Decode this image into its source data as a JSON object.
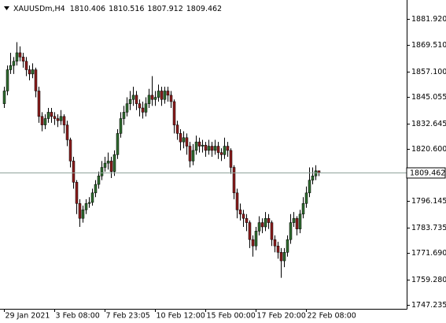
{
  "chart_data": {
    "type": "candlestick",
    "symbol": "XAUUSDm,H4",
    "bull_color": "#2f6b2f",
    "bear_color": "#8b1c1c",
    "wick_color": "#000000",
    "price_line_color": "#8fa39a",
    "categories": [
      "29 Jan 2021",
      null,
      null,
      null,
      null,
      null,
      null,
      null,
      null,
      null,
      null,
      null,
      null,
      null,
      null,
      null,
      "3 Feb 08:00",
      null,
      null,
      null,
      null,
      null,
      null,
      null,
      null,
      null,
      null,
      null,
      null,
      null,
      null,
      null,
      "7 Feb 23:05",
      null,
      null,
      null,
      null,
      null,
      null,
      null,
      null,
      null,
      null,
      null,
      null,
      null,
      null,
      null,
      "10 Feb 12:00",
      null,
      null,
      null,
      null,
      null,
      null,
      null,
      null,
      null,
      null,
      null,
      null,
      null,
      null,
      null,
      "15 Feb 00:00",
      null,
      null,
      null,
      null,
      null,
      null,
      null,
      null,
      null,
      null,
      null,
      null,
      null,
      null,
      null,
      "17 Feb 20:00",
      null,
      null,
      null,
      null,
      null,
      null,
      null,
      null,
      null,
      null,
      null,
      null,
      null,
      null,
      null,
      "22 Feb 08:00",
      null,
      null,
      null,
      null
    ],
    "open": [
      1842,
      1848,
      1858,
      1860,
      1862,
      1866,
      1864,
      1862,
      1858,
      1856,
      1858,
      1848,
      1836,
      1832,
      1835,
      1838,
      1836,
      1835,
      1834,
      1836,
      1832,
      1825,
      1815,
      1805,
      1795,
      1788,
      1792,
      1795,
      1795.5,
      1800,
      1804,
      1808,
      1812,
      1814,
      1815,
      1810,
      1818,
      1828,
      1835,
      1838,
      1842,
      1844,
      1846,
      1842,
      1840,
      1838,
      1842,
      1846,
      1844,
      1845,
      1848,
      1844,
      1848,
      1846,
      1843,
      1832,
      1828,
      1824,
      1826,
      1822,
      1815,
      1820,
      1824,
      1822,
      1822.5,
      1820,
      1822,
      1820,
      1822,
      1819,
      1818,
      1822,
      1820,
      1812,
      1800,
      1792,
      1790,
      1788,
      1786,
      1778,
      1775,
      1782,
      1786,
      1784,
      1788,
      1786,
      1778,
      1775,
      1772,
      1768,
      1772,
      1778,
      1786,
      1788,
      1783,
      1790,
      1795,
      1800,
      1806,
      1808,
      1810.406
    ],
    "high": [
      1850,
      1860,
      1866,
      1864,
      1871,
      1869,
      1866,
      1864,
      1860,
      1861,
      1859,
      1850,
      1838,
      1837,
      1840,
      1840,
      1838,
      1837,
      1839,
      1837,
      1834,
      1826,
      1817,
      1806,
      1797,
      1794,
      1797,
      1798,
      1802,
      1806,
      1810,
      1815,
      1817,
      1819,
      1817,
      1820,
      1830,
      1838,
      1841,
      1845,
      1848,
      1850,
      1848,
      1844,
      1843,
      1845,
      1849,
      1855,
      1848,
      1851,
      1850,
      1850,
      1850,
      1848,
      1844,
      1834,
      1830,
      1829,
      1828,
      1824,
      1823,
      1827,
      1826,
      1825,
      1824,
      1825,
      1824,
      1825,
      1824,
      1821,
      1826,
      1824,
      1821,
      1813,
      1802,
      1795,
      1792,
      1790,
      1787,
      1780,
      1784,
      1789,
      1788,
      1791,
      1790,
      1787,
      1780,
      1777,
      1774,
      1774,
      1780,
      1790,
      1791,
      1789,
      1792,
      1798,
      1803,
      1812,
      1812,
      1813,
      1810.516
    ],
    "low": [
      1840,
      1846,
      1856,
      1856,
      1860,
      1862,
      1859,
      1855,
      1853,
      1854,
      1845,
      1833,
      1829,
      1830,
      1833,
      1833,
      1832,
      1831,
      1832,
      1828,
      1822,
      1812,
      1802,
      1790,
      1784,
      1786,
      1790,
      1793,
      1794,
      1798,
      1802,
      1806,
      1810,
      1811,
      1807,
      1808,
      1816,
      1826,
      1832,
      1836,
      1839,
      1841,
      1839,
      1836,
      1835,
      1836,
      1840,
      1841,
      1841,
      1843,
      1841,
      1842,
      1843,
      1840,
      1828,
      1825,
      1820,
      1821,
      1818,
      1812,
      1813,
      1818,
      1819,
      1819,
      1817,
      1818,
      1817,
      1818,
      1816,
      1815,
      1816,
      1817,
      1809,
      1797,
      1788,
      1787,
      1784,
      1782,
      1774,
      1770,
      1773,
      1780,
      1781,
      1782,
      1783,
      1775,
      1772,
      1769,
      1760,
      1765,
      1770,
      1776,
      1784,
      1780,
      1781,
      1788,
      1793,
      1798,
      1804,
      1806,
      1807.912
    ],
    "close": [
      1848,
      1858,
      1860,
      1862,
      1866,
      1864,
      1862,
      1858,
      1856,
      1858,
      1848,
      1836,
      1832,
      1835,
      1838,
      1836,
      1835,
      1834,
      1836,
      1832,
      1825,
      1815,
      1805,
      1795,
      1788,
      1792,
      1795,
      1795.5,
      1800,
      1804,
      1808,
      1812,
      1814,
      1815,
      1810,
      1818,
      1828,
      1835,
      1838,
      1842,
      1844,
      1846,
      1842,
      1840,
      1838,
      1842,
      1846,
      1844,
      1845,
      1848,
      1844,
      1848,
      1846,
      1843,
      1832,
      1828,
      1824,
      1826,
      1822,
      1815,
      1820,
      1824,
      1822,
      1822.5,
      1820,
      1822,
      1820,
      1822,
      1819,
      1818,
      1822,
      1820,
      1812,
      1800,
      1792,
      1790,
      1788,
      1786,
      1778,
      1775,
      1782,
      1786,
      1784,
      1788,
      1786,
      1778,
      1775,
      1772,
      1768,
      1772,
      1778,
      1786,
      1788,
      1783,
      1790,
      1795,
      1800,
      1806,
      1808,
      1810.406,
      1809.462
    ],
    "ylim": [
      1745.4,
      1890.1
    ],
    "yticks": [
      {
        "value": 1881.92,
        "label": "1881.920"
      },
      {
        "value": 1869.51,
        "label": "1869.510"
      },
      {
        "value": 1857.1,
        "label": "1857.100"
      },
      {
        "value": 1845.055,
        "label": "1845.055"
      },
      {
        "value": 1832.645,
        "label": "1832.645"
      },
      {
        "value": 1820.6,
        "label": "1820.600"
      },
      {
        "value": 1796.145,
        "label": "1796.145"
      },
      {
        "value": 1783.735,
        "label": "1783.735"
      },
      {
        "value": 1771.69,
        "label": "1771.690"
      },
      {
        "value": 1759.28,
        "label": "1759.280"
      },
      {
        "value": 1747.235,
        "label": "1747.235"
      }
    ]
  }
}
